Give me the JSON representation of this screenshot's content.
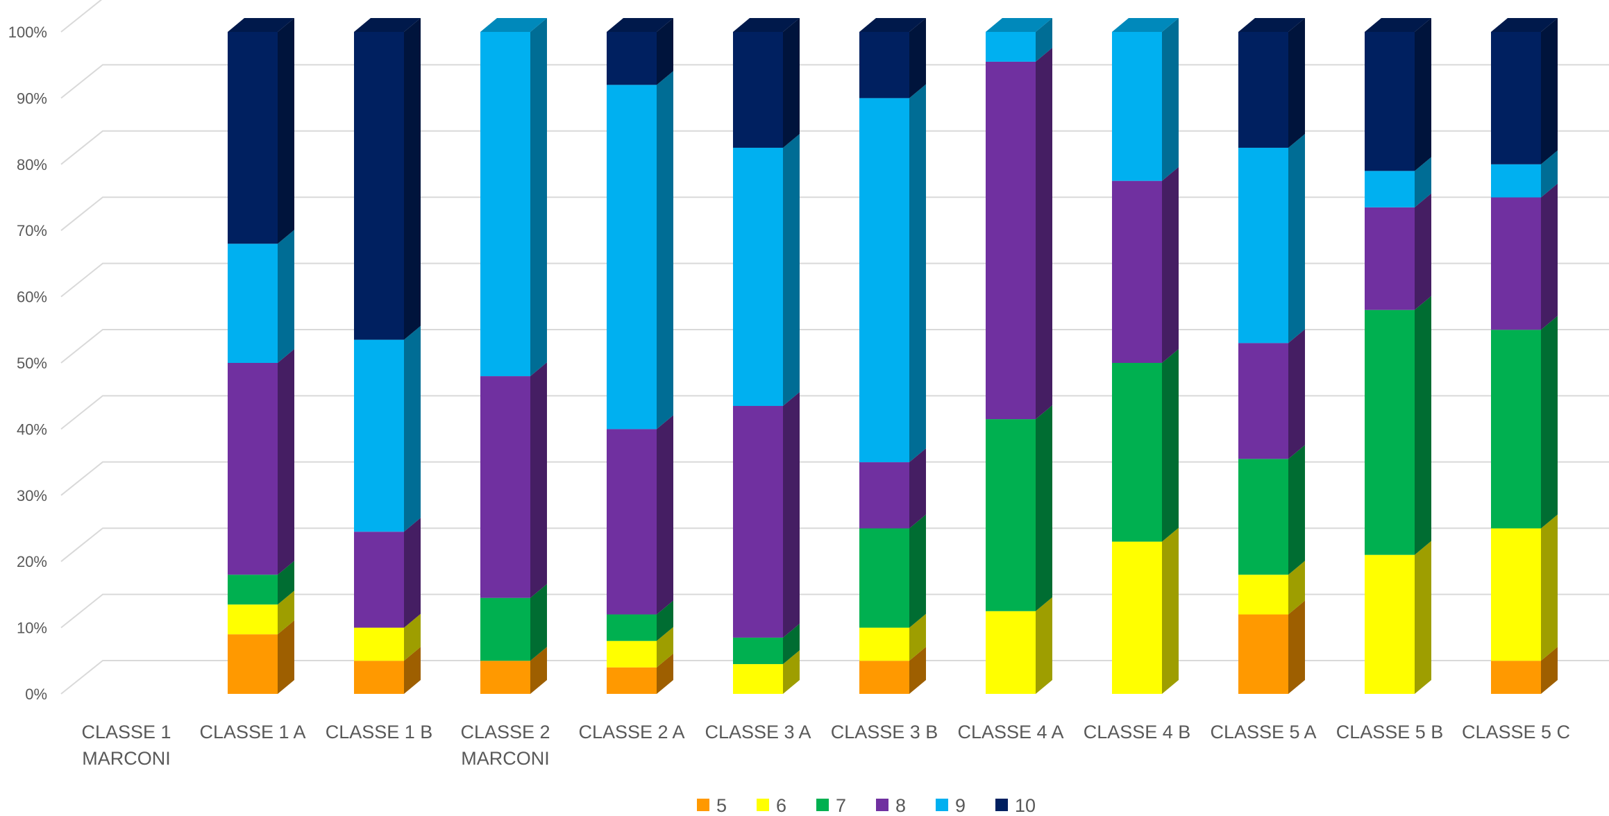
{
  "chart_data": {
    "type": "bar",
    "stacked": true,
    "percent": true,
    "style": "3d-column",
    "categories": [
      [
        "CLASSE 1",
        "MARCONI"
      ],
      [
        "CLASSE 1 A"
      ],
      [
        "CLASSE 1 B"
      ],
      [
        "CLASSE 2",
        "MARCONI"
      ],
      [
        "CLASSE 2 A"
      ],
      [
        "CLASSE 3 A"
      ],
      [
        "CLASSE 3 B"
      ],
      [
        "CLASSE 4 A"
      ],
      [
        "CLASSE 4 B"
      ],
      [
        "CLASSE 5 A"
      ],
      [
        "CLASSE 5 B"
      ],
      [
        "CLASSE 5 C"
      ]
    ],
    "series": [
      {
        "name": "5",
        "color": "#FF9900",
        "values": [
          0,
          9,
          5,
          5,
          4,
          0,
          5,
          0,
          0,
          12,
          0,
          5
        ]
      },
      {
        "name": "6",
        "color": "#FFFF00",
        "values": [
          0,
          4.5,
          5,
          0,
          4,
          4.5,
          5,
          12.5,
          23,
          6,
          21,
          20
        ]
      },
      {
        "name": "7",
        "color": "#00B050",
        "values": [
          0,
          4.5,
          0,
          9.5,
          4,
          4,
          15,
          29,
          27,
          17.5,
          37,
          30
        ]
      },
      {
        "name": "8",
        "color": "#7030A0",
        "values": [
          0,
          32,
          14.5,
          33.5,
          28,
          35,
          10,
          54,
          27.5,
          17.5,
          15.5,
          20
        ]
      },
      {
        "name": "9",
        "color": "#00B0F0",
        "values": [
          0,
          18,
          29,
          52,
          52,
          39,
          55,
          4.5,
          22.5,
          29.5,
          5.5,
          5
        ]
      },
      {
        "name": "10",
        "color": "#002060",
        "values": [
          0,
          32,
          46.5,
          0,
          8,
          17.5,
          10,
          0,
          0,
          17.5,
          21,
          20
        ]
      }
    ],
    "yticks": [
      "0%",
      "10%",
      "20%",
      "30%",
      "40%",
      "50%",
      "60%",
      "70%",
      "80%",
      "90%",
      "100%"
    ],
    "ylim": [
      0,
      100
    ],
    "grid": true,
    "legend_position": "bottom",
    "title": "",
    "xlabel": "",
    "ylabel": ""
  }
}
